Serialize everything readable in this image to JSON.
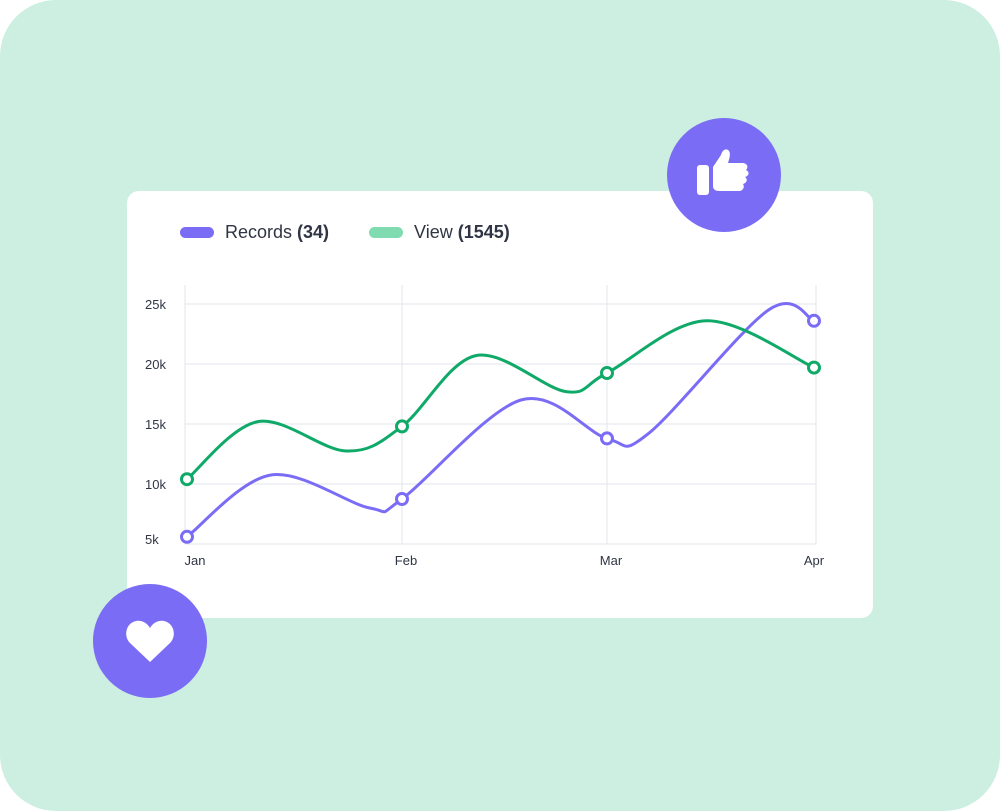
{
  "colors": {
    "background": "#ccefe1",
    "card": "#ffffff",
    "records": "#7b6cf6",
    "view_line": "#0fa968",
    "view_legend": "#80dbb0",
    "badge": "#7b6cf6",
    "grid": "#e6e9ef",
    "text": "#2f3544"
  },
  "icons": {
    "top_badge": "thumbs-up-icon",
    "bottom_badge": "heart-icon"
  },
  "legend": [
    {
      "label": "Records",
      "count": "(34)"
    },
    {
      "label": "View",
      "count": "(1545)"
    }
  ],
  "chart_data": {
    "type": "line",
    "smooth": true,
    "categories": [
      "Jan",
      "Feb",
      "Mar",
      "Apr"
    ],
    "y_ticks": [
      "5k",
      "10k",
      "15k",
      "20k",
      "25k"
    ],
    "ylim": [
      5,
      25
    ],
    "y_unit": "thousands",
    "grid": true,
    "legend_position": "top-left",
    "series": [
      {
        "name": "Records",
        "values": [
          5.6,
          8.75,
          13.8,
          23.6
        ],
        "curve": [
          [
            0,
            5.6
          ],
          [
            0.39,
            10.75
          ],
          [
            0.85,
            8.0
          ],
          [
            1,
            8.75
          ],
          [
            1.58,
            17.0
          ],
          [
            2,
            13.8
          ],
          [
            2.2,
            14.2
          ],
          [
            2.78,
            24.5
          ],
          [
            3,
            23.6
          ]
        ]
      },
      {
        "name": "View",
        "values": [
          10.4,
          14.8,
          19.25,
          19.7
        ],
        "curve": [
          [
            0,
            10.4
          ],
          [
            0.33,
            15.2
          ],
          [
            0.74,
            12.75
          ],
          [
            1,
            14.8
          ],
          [
            1.36,
            20.7
          ],
          [
            1.8,
            17.7
          ],
          [
            2,
            19.25
          ],
          [
            2.48,
            23.6
          ],
          [
            3,
            19.7
          ]
        ]
      }
    ]
  }
}
